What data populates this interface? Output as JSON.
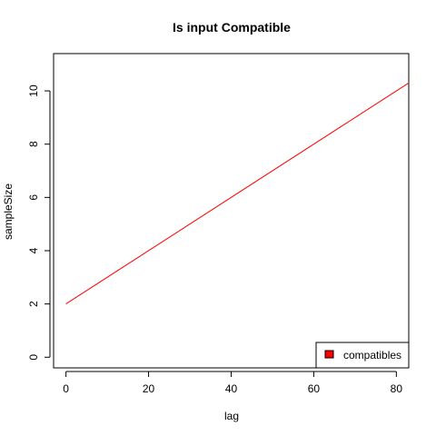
{
  "chart_data": {
    "type": "line",
    "title": "Is input Compatible",
    "xlabel": "lag",
    "ylabel": "sampleSize",
    "xlim": [
      -3,
      83
    ],
    "ylim": [
      -0.4,
      11.4
    ],
    "x_ticks": [
      0,
      20,
      40,
      60,
      80
    ],
    "y_ticks": [
      0,
      2,
      4,
      6,
      8,
      10
    ],
    "grid": false,
    "legend_position": "bottom-right",
    "series": [
      {
        "name": "compatibles",
        "color": "#ff0000",
        "x": [
          0,
          83
        ],
        "y": [
          2,
          10.3
        ]
      }
    ]
  }
}
